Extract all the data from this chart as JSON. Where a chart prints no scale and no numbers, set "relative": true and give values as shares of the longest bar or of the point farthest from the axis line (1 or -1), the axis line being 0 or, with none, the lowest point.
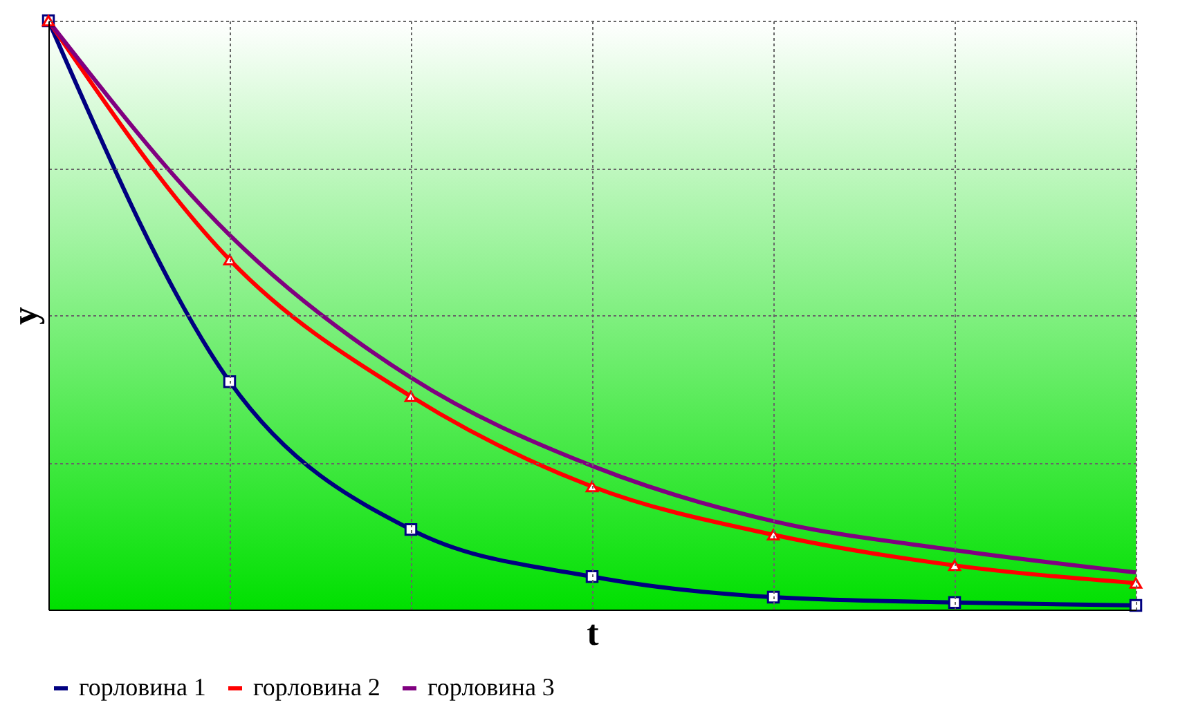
{
  "chart_data": {
    "type": "line",
    "relative": true,
    "xlabel": "t",
    "ylabel": "y",
    "categories": [
      null,
      null,
      null,
      null,
      null,
      null,
      null
    ],
    "grid": true,
    "legend": "bottom",
    "tick_labels": false,
    "series": [
      {
        "name": "горловина 1",
        "color": "#000080",
        "marker": "square",
        "values": [
          1,
          0.387,
          0.136,
          0.056,
          0.021,
          0.012,
          0.007
        ]
      },
      {
        "name": "горловина 2",
        "color": "#ff0000",
        "marker": "triangle",
        "values": [
          1,
          0.594,
          0.362,
          0.209,
          0.127,
          0.075,
          0.045
        ]
      },
      {
        "name": "горловина 3",
        "color": "#800080",
        "marker": "none",
        "values": [
          1,
          0.636,
          0.394,
          0.244,
          0.15,
          0.101,
          0.063
        ]
      }
    ]
  }
}
